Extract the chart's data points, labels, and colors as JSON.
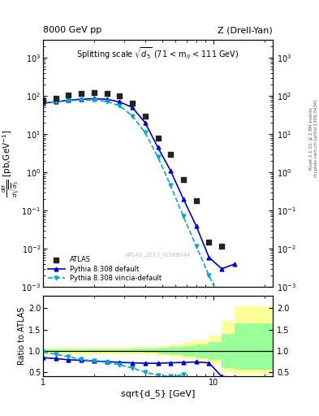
{
  "title_left": "8000 GeV pp",
  "title_right": "Z (Drell-Yan)",
  "panel_title": "Splitting scale $\\sqrt{d_5}$ (71 < m$_{ll}$ < 111 GeV)",
  "ylabel_main": "d$\\sigma$/dsqrt[$d_5$] [pb,GeV$^{-1}$]",
  "ylabel_ratio": "Ratio to ATLAS",
  "xlabel": "sqrt{d_5} [GeV]",
  "watermark": "ATLAS_2017_I1589844",
  "right_label_top": "Rivet 3.1.10, ≥ 2.8M events",
  "right_label_bottom": "mcplots.cern.ch [arXiv:1306.3436]",
  "atlas_x": [
    1.0,
    1.19,
    1.41,
    1.68,
    2.0,
    2.37,
    2.82,
    3.35,
    3.98,
    4.73,
    5.62,
    6.68,
    7.94,
    9.44,
    11.22,
    13.34,
    15.85
  ],
  "atlas_y": [
    75,
    85,
    105,
    115,
    120,
    115,
    100,
    65,
    30,
    8,
    3,
    0.65,
    0.18,
    0.015,
    0.012,
    null,
    null
  ],
  "pythia_default_x": [
    1.0,
    1.19,
    1.41,
    1.68,
    2.0,
    2.37,
    2.82,
    3.35,
    3.98,
    4.73,
    5.62,
    6.68,
    7.94,
    9.44,
    11.22,
    13.34,
    15.85
  ],
  "pythia_default_y": [
    65,
    70,
    78,
    82,
    85,
    82,
    70,
    50,
    20,
    4.5,
    1.1,
    0.2,
    0.04,
    0.006,
    0.003,
    0.004,
    null
  ],
  "pythia_vincia_x": [
    1.0,
    1.19,
    1.41,
    1.68,
    2.0,
    2.37,
    2.82,
    3.35,
    3.98,
    4.73,
    5.62,
    6.68,
    7.94,
    9.44,
    11.22,
    13.34,
    15.85
  ],
  "pythia_vincia_y": [
    65,
    70,
    75,
    78,
    78,
    72,
    55,
    30,
    11,
    2.5,
    0.45,
    0.07,
    0.012,
    0.002,
    0.0004,
    0.0002,
    null
  ],
  "ratio_default_x": [
    1.0,
    1.19,
    1.41,
    1.68,
    2.0,
    2.37,
    2.82,
    3.35,
    3.98,
    4.73,
    5.62,
    6.68,
    7.94,
    9.44,
    11.22,
    13.34
  ],
  "ratio_default_y": [
    0.84,
    0.82,
    0.79,
    0.78,
    0.76,
    0.75,
    0.73,
    0.72,
    0.71,
    0.71,
    0.72,
    0.73,
    0.74,
    0.72,
    0.4,
    0.38
  ],
  "ratio_vincia_x": [
    1.0,
    1.19,
    1.41,
    1.68,
    2.0,
    2.37,
    2.82,
    3.35,
    3.98,
    4.73,
    5.62,
    6.68,
    7.94,
    9.44
  ],
  "ratio_vincia_y": [
    0.97,
    0.92,
    0.86,
    0.8,
    0.76,
    0.73,
    0.67,
    0.6,
    0.5,
    0.43,
    0.4,
    0.44,
    null,
    null
  ],
  "band_yellow_edges": [
    1.0,
    1.19,
    1.41,
    1.68,
    2.0,
    2.37,
    2.82,
    3.35,
    3.98,
    4.73,
    5.62,
    6.68,
    7.94,
    9.44,
    11.22,
    13.34,
    22.38
  ],
  "band_yellow_lo": [
    0.93,
    0.93,
    0.93,
    0.93,
    0.93,
    0.93,
    0.93,
    0.93,
    0.9,
    0.88,
    0.85,
    0.8,
    0.75,
    0.7,
    0.5,
    0.45,
    0.45
  ],
  "band_yellow_hi": [
    1.07,
    1.07,
    1.07,
    1.07,
    1.07,
    1.07,
    1.08,
    1.09,
    1.1,
    1.12,
    1.15,
    1.2,
    1.25,
    1.35,
    1.7,
    2.05,
    2.05
  ],
  "band_green_edges": [
    1.0,
    1.19,
    1.41,
    1.68,
    2.0,
    2.37,
    2.82,
    3.35,
    3.98,
    4.73,
    5.62,
    6.68,
    7.94,
    9.44,
    11.22,
    13.34,
    22.38
  ],
  "band_green_lo": [
    0.97,
    0.97,
    0.97,
    0.97,
    0.97,
    0.97,
    0.97,
    0.97,
    0.95,
    0.93,
    0.91,
    0.87,
    0.83,
    0.78,
    0.6,
    0.55,
    0.55
  ],
  "band_green_hi": [
    1.03,
    1.03,
    1.03,
    1.03,
    1.03,
    1.03,
    1.04,
    1.05,
    1.06,
    1.07,
    1.09,
    1.12,
    1.15,
    1.2,
    1.4,
    1.65,
    1.65
  ],
  "xlim": [
    1.0,
    22.38
  ],
  "ylim_main": [
    0.001,
    3000.0
  ],
  "ylim_ratio": [
    0.4,
    2.3
  ],
  "yticks_ratio": [
    0.5,
    1.0,
    1.5,
    2.0
  ],
  "color_atlas": "#222222",
  "color_default": "#0000cc",
  "color_vincia": "#00aacc",
  "color_yellow": "#ffff99",
  "color_green": "#99ff99"
}
